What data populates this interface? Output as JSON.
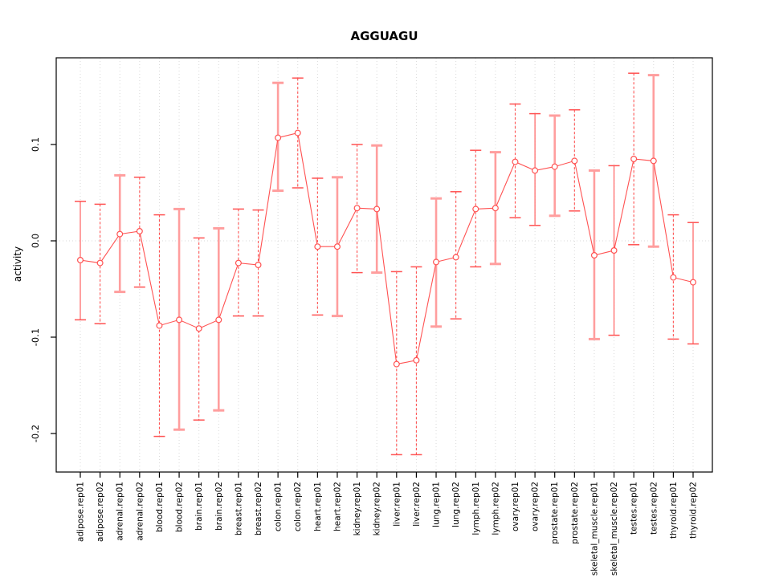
{
  "chart_data": {
    "type": "line",
    "title": "AGGUAGU",
    "xlabel": "",
    "ylabel": "activity",
    "ylim": [
      -0.24,
      0.19
    ],
    "yticks": [
      0.1,
      0.0,
      -0.1,
      -0.2
    ],
    "ytick_labels": [
      "0.1",
      "0.0",
      "-0.1",
      "-0.2"
    ],
    "grid": "dotted vertical per category, dotted horizontal at 0",
    "legend_position": "none",
    "point_color": "#ff5252",
    "light_bar_color": "#ff9e9e",
    "grid_color": "#d9d9d9",
    "categories": [
      "adipose.rep01",
      "adipose.rep02",
      "adrenal.rep01",
      "adrenal.rep02",
      "blood.rep01",
      "blood.rep02",
      "brain.rep01",
      "brain.rep02",
      "breast.rep01",
      "breast.rep02",
      "colon.rep01",
      "colon.rep02",
      "heart.rep01",
      "heart.rep02",
      "kidney.rep01",
      "kidney.rep02",
      "liver.rep01",
      "liver.rep02",
      "lung.rep01",
      "lung.rep02",
      "lymph.rep01",
      "lymph.rep02",
      "ovary.rep01",
      "ovary.rep02",
      "prostate.rep01",
      "prostate.rep02",
      "skeletal_muscle.rep01",
      "skeletal_muscle.rep02",
      "testes.rep01",
      "testes.rep02",
      "thyroid.rep01",
      "thyroid.rep02"
    ],
    "values": [
      -0.02,
      -0.023,
      0.007,
      0.01,
      -0.088,
      -0.082,
      -0.091,
      -0.082,
      -0.023,
      -0.025,
      0.107,
      0.112,
      -0.006,
      -0.006,
      0.034,
      0.033,
      -0.128,
      -0.124,
      -0.022,
      -0.017,
      0.033,
      0.034,
      0.082,
      0.073,
      0.077,
      0.083,
      -0.015,
      -0.01,
      0.085,
      0.083,
      -0.038,
      -0.043
    ],
    "lower": [
      -0.082,
      -0.086,
      -0.053,
      -0.048,
      -0.203,
      -0.196,
      -0.186,
      -0.176,
      -0.078,
      -0.078,
      0.052,
      0.055,
      -0.077,
      -0.078,
      -0.033,
      -0.033,
      -0.222,
      -0.222,
      -0.089,
      -0.081,
      -0.027,
      -0.024,
      0.024,
      0.016,
      0.026,
      0.031,
      -0.102,
      -0.098,
      -0.004,
      -0.006,
      -0.102,
      -0.107
    ],
    "upper": [
      0.041,
      0.038,
      0.068,
      0.066,
      0.027,
      0.033,
      0.003,
      0.013,
      0.033,
      0.032,
      0.164,
      0.169,
      0.065,
      0.066,
      0.1,
      0.099,
      -0.032,
      -0.027,
      0.044,
      0.051,
      0.094,
      0.092,
      0.142,
      0.132,
      0.13,
      0.136,
      0.073,
      0.078,
      0.174,
      0.172,
      0.027,
      0.019
    ],
    "bar_styles": [
      "solid",
      "dashed",
      "solid-light",
      "dashed",
      "dashed",
      "solid-light",
      "dashed",
      "solid-light",
      "dashed",
      "dashed",
      "solid-light",
      "dashed",
      "dashed",
      "solid-light",
      "dashed",
      "solid-light",
      "dashed",
      "dashed",
      "solid-light",
      "dashed",
      "dashed",
      "solid-light",
      "dashed",
      "solid",
      "solid-light",
      "dashed",
      "solid-light",
      "solid",
      "dashed",
      "solid-light",
      "dashed",
      "solid"
    ]
  }
}
